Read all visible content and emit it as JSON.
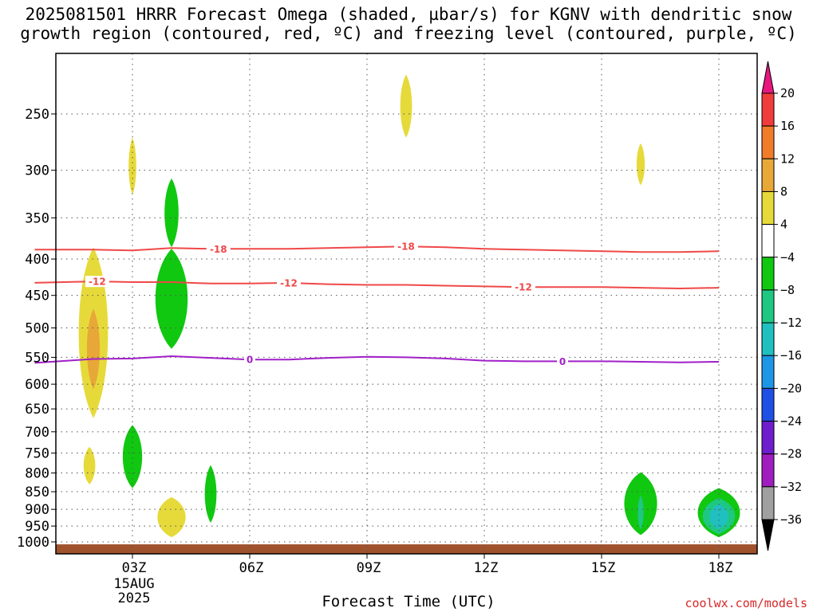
{
  "title_line1": "2025081501 HRRR Forecast Omega (shaded, µbar/s) for KGNV with dendritic snow",
  "title_line2": "growth region (contoured, red, ºC) and freezing level (contoured, purple, ºC)",
  "xlabel": "Forecast Time (UTC)",
  "credit": "coolwx.com/models",
  "chart_data": {
    "type": "time-height cross section (filled contour)",
    "x_axis": {
      "unit": "hours UTC",
      "range": [
        0.5,
        18.0
      ],
      "ticks": [
        {
          "hour": 3,
          "label": "03Z",
          "sub": [
            "15AUG",
            "2025"
          ]
        },
        {
          "hour": 6,
          "label": "06Z"
        },
        {
          "hour": 9,
          "label": "09Z"
        },
        {
          "hour": 12,
          "label": "12Z"
        },
        {
          "hour": 15,
          "label": "15Z"
        },
        {
          "hour": 18,
          "label": "18Z"
        }
      ]
    },
    "y_axis": {
      "unit": "hPa",
      "scale": "log",
      "range": [
        1030,
        190
      ],
      "ticks": [
        250,
        300,
        350,
        400,
        450,
        500,
        550,
        600,
        650,
        700,
        750,
        800,
        850,
        900,
        950,
        1000
      ]
    },
    "colorbar": {
      "levels": [
        20,
        16,
        12,
        8,
        4,
        -4,
        -8,
        -12,
        -16,
        -20,
        -24,
        -28,
        -32,
        -36
      ],
      "bins": [
        {
          "from": 20,
          "to": 24,
          "color": "#e8177e"
        },
        {
          "from": 16,
          "to": 20,
          "color": "#f03c3c"
        },
        {
          "from": 12,
          "to": 16,
          "color": "#f07c28"
        },
        {
          "from": 8,
          "to": 12,
          "color": "#e8a838"
        },
        {
          "from": 4,
          "to": 8,
          "color": "#e6da3a"
        },
        {
          "from": -4,
          "to": 4,
          "color": "#ffffff"
        },
        {
          "from": -8,
          "to": -4,
          "color": "#10c810"
        },
        {
          "from": -12,
          "to": -8,
          "color": "#1ec882"
        },
        {
          "from": -16,
          "to": -12,
          "color": "#20c0c0"
        },
        {
          "from": -20,
          "to": -16,
          "color": "#1e96e6"
        },
        {
          "from": -24,
          "to": -20,
          "color": "#1e50e6"
        },
        {
          "from": -28,
          "to": -24,
          "color": "#6e1ecc"
        },
        {
          "from": -32,
          "to": -28,
          "color": "#a01ec0"
        },
        {
          "from": -36,
          "to": -32,
          "color": "#a0a0a0"
        },
        {
          "from": -40,
          "to": -36,
          "color": "#000000"
        }
      ]
    },
    "omega_blobs": [
      {
        "hour": 2.0,
        "p_top": 385,
        "p_bot": 670,
        "hour_half_width": 0.5,
        "color": "#e6da3a",
        "level": 4
      },
      {
        "hour": 2.0,
        "p_top": 470,
        "p_bot": 610,
        "hour_half_width": 0.22,
        "color": "#e8a838",
        "level": 8
      },
      {
        "hour": 3.0,
        "p_top": 270,
        "p_bot": 325,
        "hour_half_width": 0.13,
        "color": "#e6da3a",
        "level": 4
      },
      {
        "hour": 4.0,
        "p_top": 308,
        "p_bot": 385,
        "hour_half_width": 0.24,
        "color": "#10c810",
        "level": -4
      },
      {
        "hour": 4.0,
        "p_top": 387,
        "p_bot": 535,
        "hour_half_width": 0.55,
        "color": "#10c810",
        "level": -4
      },
      {
        "hour": 10.0,
        "p_top": 220,
        "p_bot": 270,
        "hour_half_width": 0.2,
        "color": "#e6da3a",
        "level": 4
      },
      {
        "hour": 16.0,
        "p_top": 275,
        "p_bot": 315,
        "hour_half_width": 0.14,
        "color": "#e6da3a",
        "level": 4
      },
      {
        "hour": 1.9,
        "p_top": 735,
        "p_bot": 830,
        "hour_half_width": 0.2,
        "color": "#e6da3a",
        "level": 4
      },
      {
        "hour": 3.0,
        "p_top": 685,
        "p_bot": 840,
        "hour_half_width": 0.33,
        "color": "#10c810",
        "level": -4
      },
      {
        "hour": 4.0,
        "p_top": 865,
        "p_bot": 985,
        "hour_half_width": 0.48,
        "color": "#e6da3a",
        "level": 4
      },
      {
        "hour": 5.0,
        "p_top": 780,
        "p_bot": 940,
        "hour_half_width": 0.2,
        "color": "#10c810",
        "level": -4
      },
      {
        "hour": 16.0,
        "p_top": 798,
        "p_bot": 978,
        "hour_half_width": 0.56,
        "color": "#10c810",
        "level": -4
      },
      {
        "hour": 16.0,
        "p_top": 860,
        "p_bot": 960,
        "hour_half_width": 0.1,
        "color": "#1ec882",
        "level": -8
      },
      {
        "hour": 18.0,
        "p_top": 840,
        "p_bot": 985,
        "hour_half_width": 0.72,
        "color": "#10c810",
        "level": -4
      },
      {
        "hour": 18.0,
        "p_top": 868,
        "p_bot": 975,
        "hour_half_width": 0.55,
        "color": "#1ec882",
        "level": -8
      },
      {
        "hour": 18.0,
        "p_top": 885,
        "p_bot": 960,
        "hour_half_width": 0.32,
        "color": "#20c0c0",
        "level": -12
      }
    ],
    "isotherm_contours": [
      {
        "level": -18,
        "label": "-18",
        "color": "#f04848",
        "points": [
          [
            0.5,
            388
          ],
          [
            2,
            388
          ],
          [
            3,
            389
          ],
          [
            4,
            386
          ],
          [
            5,
            387
          ],
          [
            6,
            387
          ],
          [
            7,
            387
          ],
          [
            8,
            386
          ],
          [
            9,
            385
          ],
          [
            10,
            384
          ],
          [
            11,
            385
          ],
          [
            12,
            387
          ],
          [
            13,
            388
          ],
          [
            14,
            389
          ],
          [
            15,
            390
          ],
          [
            16,
            391
          ],
          [
            17,
            391
          ],
          [
            18,
            390
          ]
        ],
        "label_hours": [
          5.2,
          10.0
        ]
      },
      {
        "level": -12,
        "label": "-12",
        "color": "#f04848",
        "points": [
          [
            0.5,
            432
          ],
          [
            2,
            430
          ],
          [
            3,
            431
          ],
          [
            4,
            431
          ],
          [
            5,
            433
          ],
          [
            6,
            433
          ],
          [
            7,
            432
          ],
          [
            8,
            434
          ],
          [
            9,
            435
          ],
          [
            10,
            435
          ],
          [
            11,
            436
          ],
          [
            12,
            437
          ],
          [
            13,
            438
          ],
          [
            14,
            438
          ],
          [
            15,
            438
          ],
          [
            16,
            439
          ],
          [
            17,
            440
          ],
          [
            18,
            439
          ]
        ],
        "label_hours": [
          2.1,
          7.0,
          13.0
        ]
      },
      {
        "level": 0,
        "label": "0",
        "color": "#a020c8",
        "points": [
          [
            0.5,
            560
          ],
          [
            2,
            553
          ],
          [
            3,
            552
          ],
          [
            4,
            548
          ],
          [
            5,
            551
          ],
          [
            6,
            554
          ],
          [
            7,
            554
          ],
          [
            8,
            551
          ],
          [
            9,
            549
          ],
          [
            10,
            550
          ],
          [
            11,
            552
          ],
          [
            12,
            556
          ],
          [
            13,
            557
          ],
          [
            14,
            557
          ],
          [
            15,
            557
          ],
          [
            16,
            558
          ],
          [
            17,
            559
          ],
          [
            18,
            558
          ]
        ],
        "label_hours": [
          6.0,
          14.0
        ]
      }
    ],
    "ground_bar": {
      "p_top": 1008,
      "p_bottom": 1030,
      "color": "#a0522d"
    }
  }
}
